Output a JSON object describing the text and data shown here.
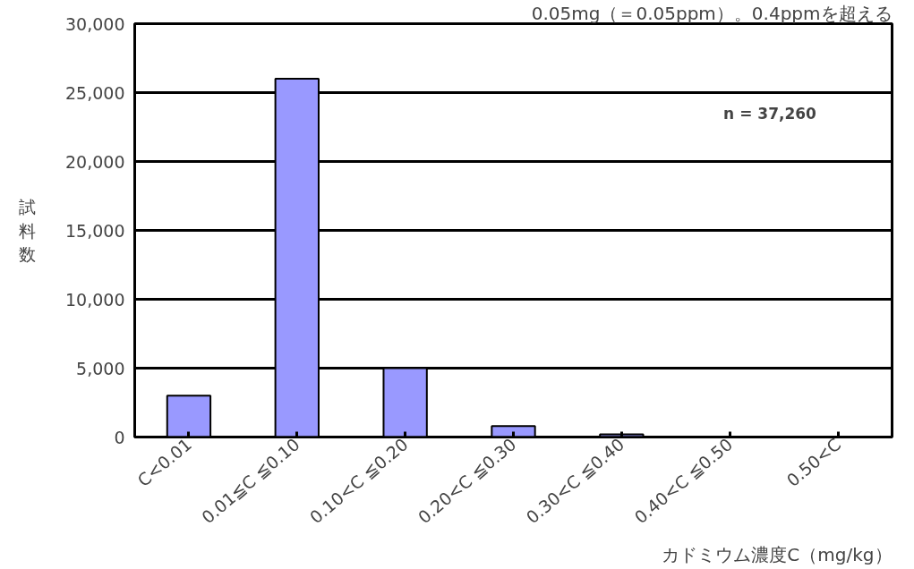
{
  "chart_data": {
    "type": "bar",
    "title": "0.05mg（＝0.05ppm）。0.4ppmを超える",
    "categories": [
      "C<0.01",
      "0.01≦C ≦0.10",
      "0.10<C ≦0.20",
      "0.20<C ≦0.30",
      "0.30<C ≦0.40",
      "0.40<C ≦0.50",
      "0.50<C"
    ],
    "values": [
      3000,
      26000,
      5000,
      800,
      200,
      0,
      0
    ],
    "color": "#9999ff",
    "ylim": [
      0,
      30000
    ],
    "yticks": [
      {
        "value": 0,
        "label": "0"
      },
      {
        "value": 5000,
        "label": "5,000"
      },
      {
        "value": 10000,
        "label": "10,000"
      },
      {
        "value": 15000,
        "label": "15,000"
      },
      {
        "value": 20000,
        "label": "20,000"
      },
      {
        "value": 25000,
        "label": "25,000"
      },
      {
        "value": 30000,
        "label": "30,000"
      }
    ],
    "xlabel": "カドミウム濃度C（mg/kg）",
    "ylabel": "試料数",
    "annotations": [
      "n = 37,260"
    ],
    "grid": "y"
  }
}
